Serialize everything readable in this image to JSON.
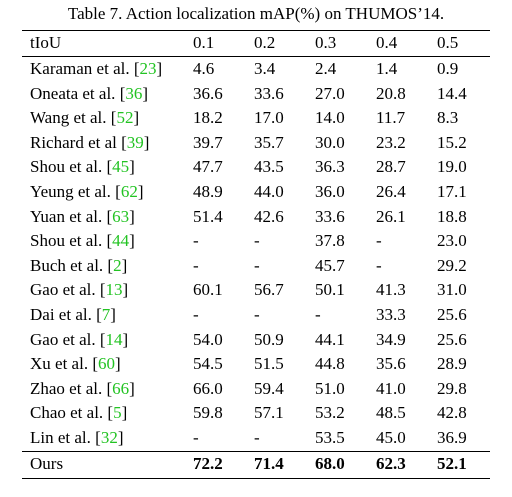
{
  "caption": "Table 7. Action localization mAP(%) on THUMOS’14.",
  "table": {
    "header": [
      "tIoU",
      "0.1",
      "0.2",
      "0.3",
      "0.4",
      "0.5"
    ],
    "rows": [
      {
        "method": "Karaman et al. ",
        "ref": [
          "[",
          "23",
          "]"
        ],
        "values": [
          "4.6",
          "3.4",
          "2.4",
          "1.4",
          "0.9"
        ]
      },
      {
        "method": "Oneata et al. ",
        "ref": [
          "[",
          "36",
          "]"
        ],
        "values": [
          "36.6",
          "33.6",
          "27.0",
          "20.8",
          "14.4"
        ]
      },
      {
        "method": "Wang et al. ",
        "ref": [
          "[",
          "52",
          "]"
        ],
        "values": [
          "18.2",
          "17.0",
          "14.0",
          "11.7",
          "8.3"
        ]
      },
      {
        "method": "Richard et al ",
        "ref": [
          "[",
          "39",
          "]"
        ],
        "values": [
          "39.7",
          "35.7",
          "30.0",
          "23.2",
          "15.2"
        ]
      },
      {
        "method": "Shou et al. ",
        "ref": [
          "[",
          "45",
          "]"
        ],
        "values": [
          "47.7",
          "43.5",
          "36.3",
          "28.7",
          "19.0"
        ]
      },
      {
        "method": "Yeung et al. ",
        "ref": [
          "[",
          "62",
          "]"
        ],
        "values": [
          "48.9",
          "44.0",
          "36.0",
          "26.4",
          "17.1"
        ]
      },
      {
        "method": "Yuan et al. ",
        "ref": [
          "[",
          "63",
          "]"
        ],
        "values": [
          "51.4",
          "42.6",
          "33.6",
          "26.1",
          "18.8"
        ]
      },
      {
        "method": "Shou et al. ",
        "ref": [
          "[",
          "44",
          "]"
        ],
        "values": [
          "-",
          "-",
          "37.8",
          "-",
          "23.0"
        ]
      },
      {
        "method": "Buch et al. ",
        "ref": [
          "[",
          "2",
          "]"
        ],
        "values": [
          "-",
          "-",
          "45.7",
          "-",
          "29.2"
        ]
      },
      {
        "method": "Gao et al. ",
        "ref": [
          "[",
          "13",
          "]"
        ],
        "values": [
          "60.1",
          "56.7",
          "50.1",
          "41.3",
          "31.0"
        ]
      },
      {
        "method": "Dai et al. ",
        "ref": [
          "[",
          "7",
          "]"
        ],
        "values": [
          "-",
          "-",
          "-",
          "33.3",
          "25.6"
        ]
      },
      {
        "method": "Gao et al. ",
        "ref": [
          "[",
          "14",
          "]"
        ],
        "values": [
          "54.0",
          "50.9",
          "44.1",
          "34.9",
          "25.6"
        ]
      },
      {
        "method": "Xu et al. ",
        "ref": [
          "[",
          "60",
          "]"
        ],
        "values": [
          "54.5",
          "51.5",
          "44.8",
          "35.6",
          "28.9"
        ]
      },
      {
        "method": "Zhao et al. ",
        "ref": [
          "[",
          "66",
          "]"
        ],
        "values": [
          "66.0",
          "59.4",
          "51.0",
          "41.0",
          "29.8"
        ]
      },
      {
        "method": "Chao et al. ",
        "ref": [
          "[",
          "5",
          "]"
        ],
        "values": [
          "59.8",
          "57.1",
          "53.2",
          "48.5",
          "42.8"
        ]
      },
      {
        "method": "Lin et al. ",
        "ref": [
          "[",
          "32",
          "]"
        ],
        "values": [
          "-",
          "-",
          "53.5",
          "45.0",
          "36.9"
        ]
      }
    ],
    "ours": {
      "method": "Ours",
      "values": [
        "72.2",
        "71.4",
        "68.0",
        "62.3",
        "52.1"
      ]
    }
  }
}
